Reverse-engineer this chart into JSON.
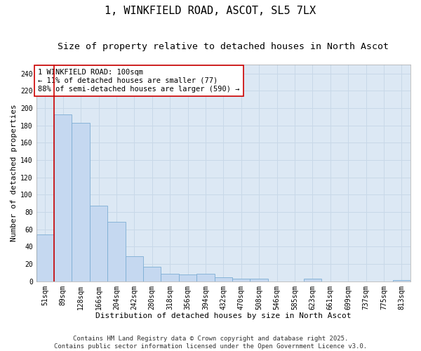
{
  "title_line1": "1, WINKFIELD ROAD, ASCOT, SL5 7LX",
  "title_line2": "Size of property relative to detached houses in North Ascot",
  "xlabel": "Distribution of detached houses by size in North Ascot",
  "ylabel": "Number of detached properties",
  "categories": [
    "51sqm",
    "89sqm",
    "128sqm",
    "166sqm",
    "204sqm",
    "242sqm",
    "280sqm",
    "318sqm",
    "356sqm",
    "394sqm",
    "432sqm",
    "470sqm",
    "508sqm",
    "546sqm",
    "585sqm",
    "623sqm",
    "661sqm",
    "699sqm",
    "737sqm",
    "775sqm",
    "813sqm"
  ],
  "values": [
    54,
    193,
    183,
    87,
    69,
    29,
    17,
    9,
    8,
    9,
    5,
    3,
    3,
    0,
    0,
    3,
    0,
    0,
    0,
    0,
    1
  ],
  "bar_color": "#c5d8f0",
  "bar_edge_color": "#7dadd4",
  "vline_color": "#cc0000",
  "annotation_text": "1 WINKFIELD ROAD: 100sqm\n← 11% of detached houses are smaller (77)\n88% of semi-detached houses are larger (590) →",
  "annotation_box_color": "#ffffff",
  "annotation_box_edge": "#cc0000",
  "ylim": [
    0,
    250
  ],
  "yticks": [
    0,
    20,
    40,
    60,
    80,
    100,
    120,
    140,
    160,
    180,
    200,
    220,
    240
  ],
  "grid_color": "#c8d8e8",
  "background_color": "#dce8f4",
  "fig_background": "#ffffff",
  "title_fontsize": 11,
  "subtitle_fontsize": 9.5,
  "axis_label_fontsize": 8,
  "tick_fontsize": 7,
  "annotation_fontsize": 7.5,
  "footer_fontsize": 6.5
}
